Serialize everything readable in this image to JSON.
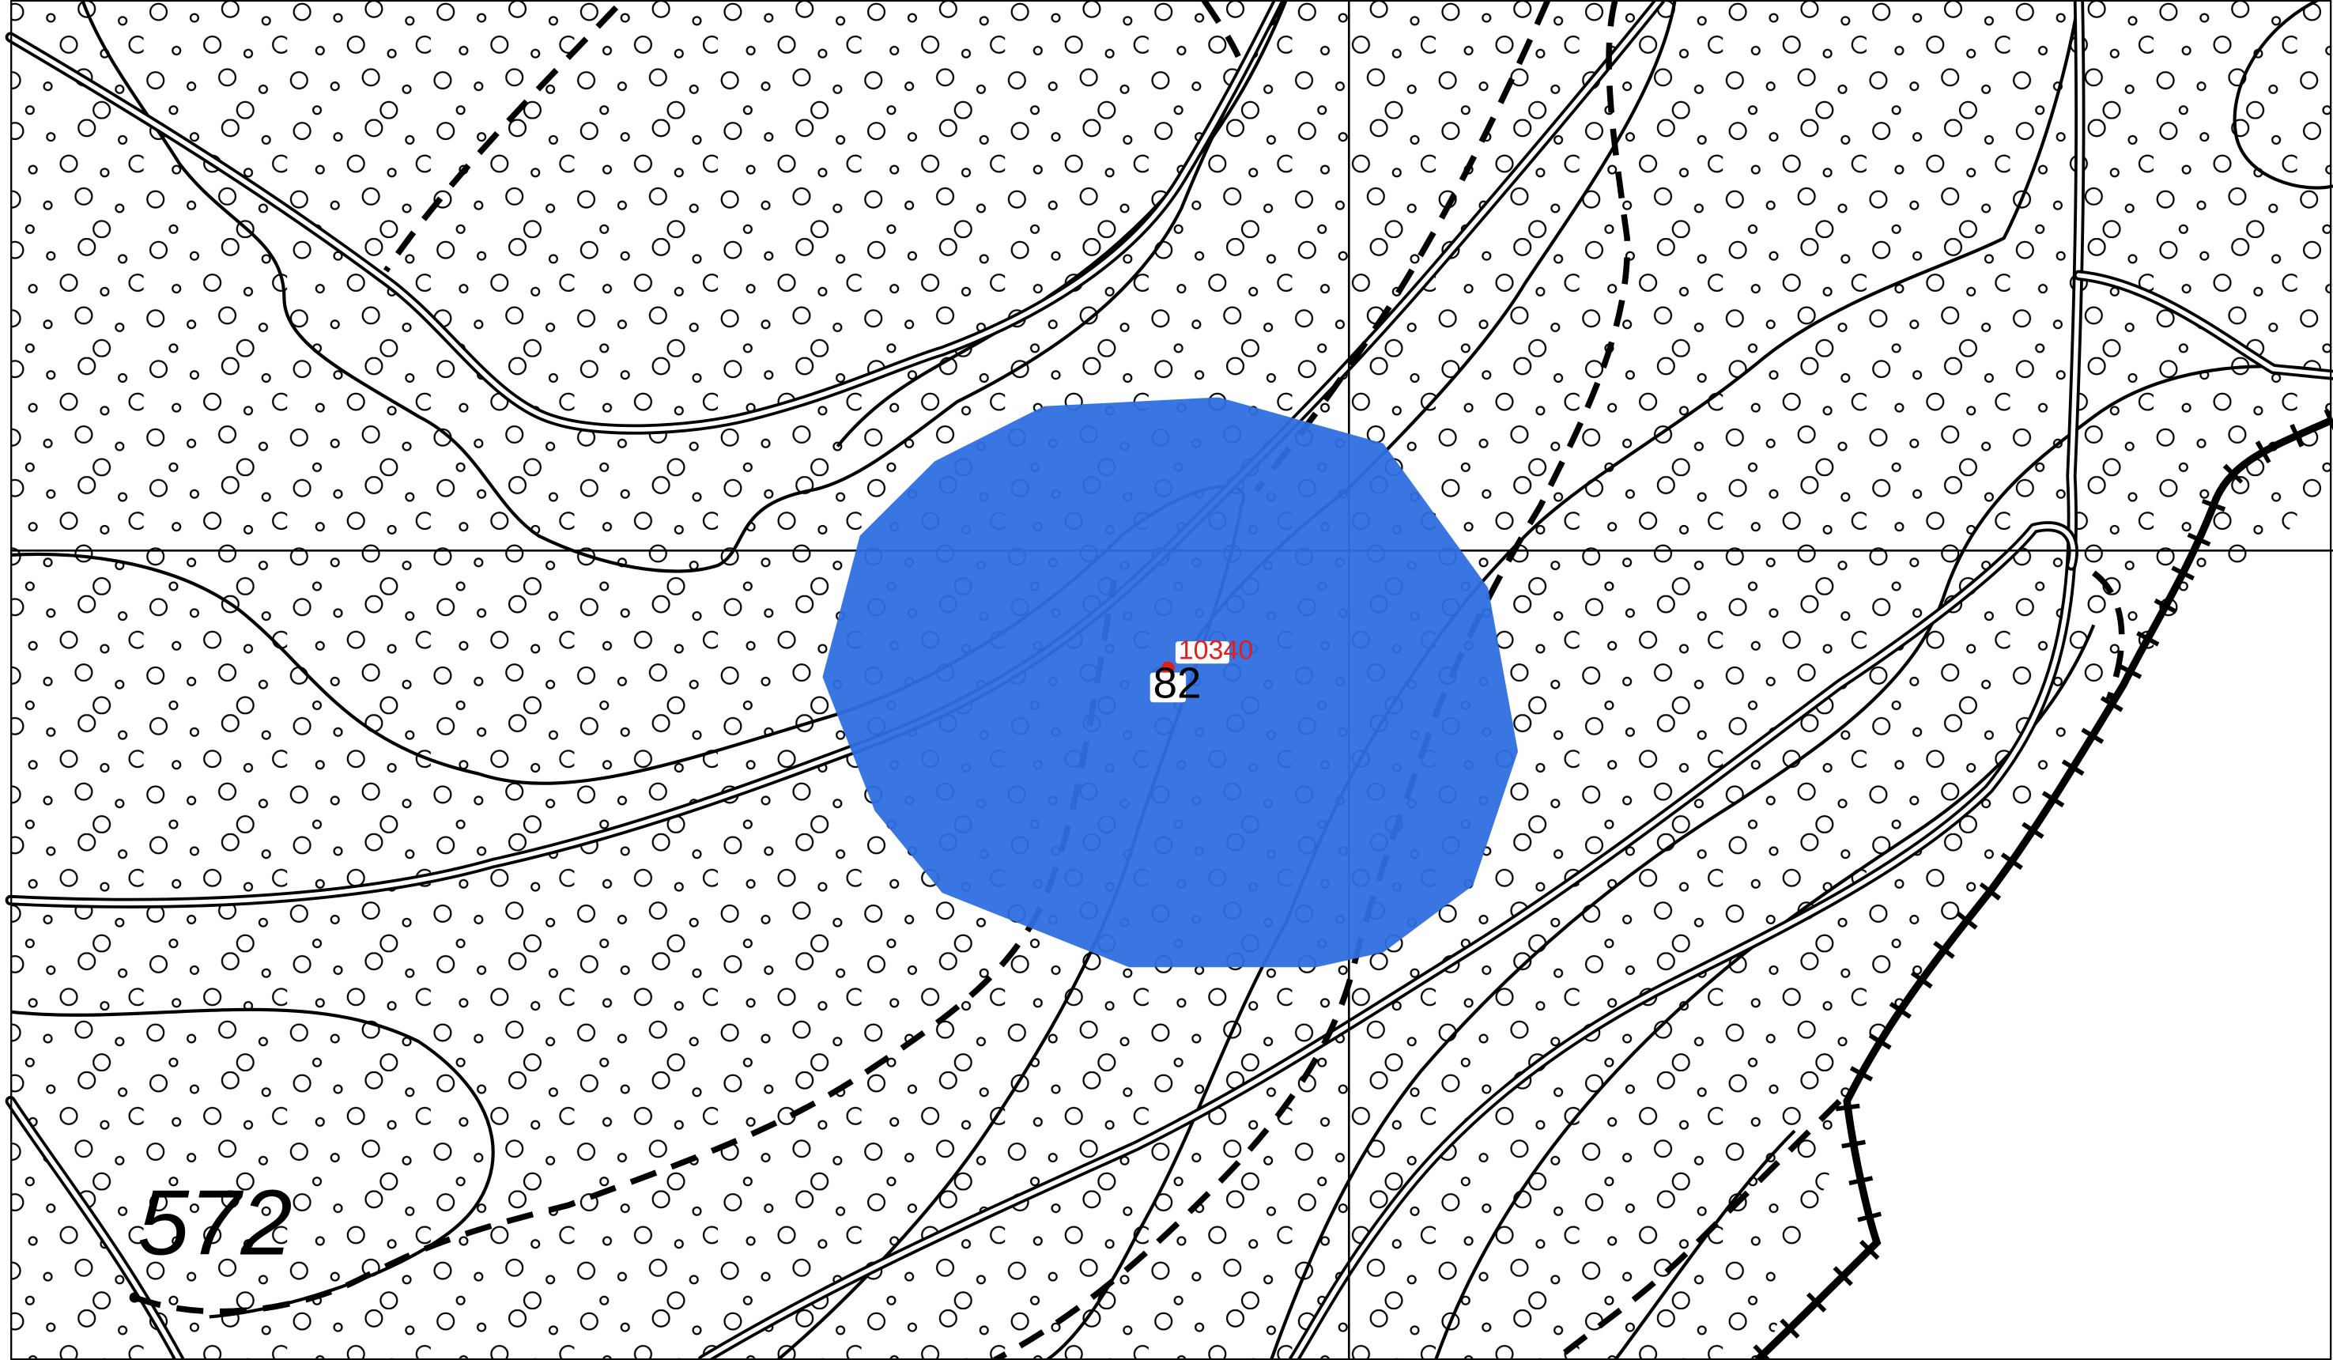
{
  "map": {
    "elevation_label": "572",
    "station_number": "10340",
    "point_number": "82"
  },
  "style": {
    "area_fill": "#2f6fe0",
    "area_opacity": 0.95,
    "point_color": "#e0201e",
    "line_color": "#000000",
    "paper_color": "#ffffff"
  },
  "symbology": {
    "ground_pattern": "circle-stipple",
    "unpaved_track": "dashed-line",
    "railway": "ticked-line",
    "road": "double-line",
    "contour": "solid-line",
    "grid": "thin-line"
  }
}
